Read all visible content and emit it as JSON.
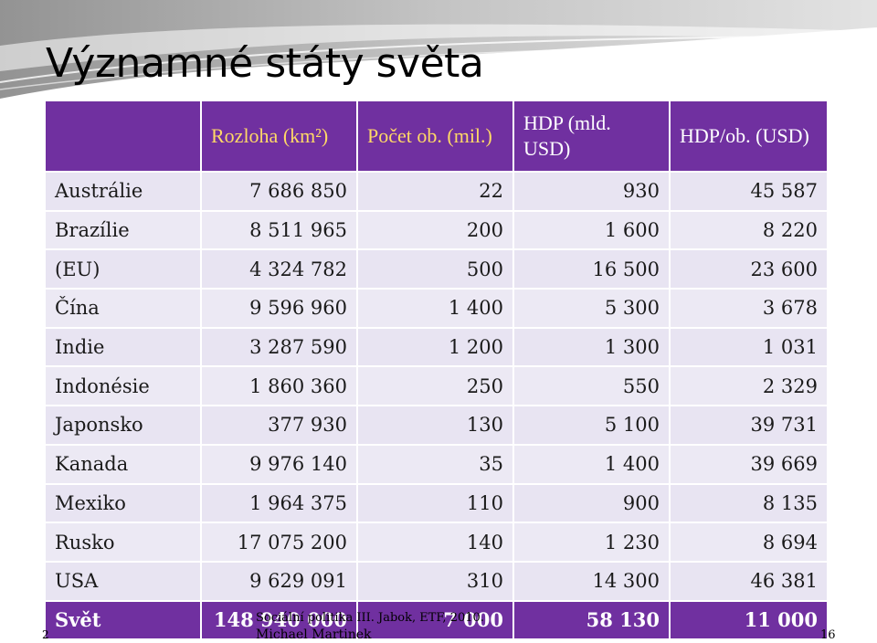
{
  "slide": {
    "title": "Významné státy světa"
  },
  "table": {
    "headers": [
      "",
      "Rozloha (km²)",
      "Počet ob. (mil.)",
      "HDP (mld. USD)",
      "HDP/ob. (USD)"
    ],
    "rows": [
      {
        "name": "Austrálie",
        "area": "7 686 850",
        "pop": "22",
        "gdp": "930",
        "gdp_pc": "45 587"
      },
      {
        "name": "Brazílie",
        "area": "8 511 965",
        "pop": "200",
        "gdp": "1 600",
        "gdp_pc": "8 220"
      },
      {
        "name": "(EU)",
        "area": "4 324 782",
        "pop": "500",
        "gdp": "16 500",
        "gdp_pc": "23 600"
      },
      {
        "name": "Čína",
        "area": "9 596 960",
        "pop": "1 400",
        "gdp": "5 300",
        "gdp_pc": "3 678"
      },
      {
        "name": "Indie",
        "area": "3 287 590",
        "pop": "1 200",
        "gdp": "1 300",
        "gdp_pc": "1 031"
      },
      {
        "name": "Indonésie",
        "area": "1 860 360",
        "pop": "250",
        "gdp": "550",
        "gdp_pc": "2 329"
      },
      {
        "name": "Japonsko",
        "area": "377 930",
        "pop": "130",
        "gdp": "5 100",
        "gdp_pc": "39 731"
      },
      {
        "name": "Kanada",
        "area": "9 976 140",
        "pop": "35",
        "gdp": "1 400",
        "gdp_pc": "39 669"
      },
      {
        "name": "Mexiko",
        "area": "1 964 375",
        "pop": "110",
        "gdp": "900",
        "gdp_pc": "8 135"
      },
      {
        "name": "Rusko",
        "area": "17 075 200",
        "pop": "140",
        "gdp": "1 230",
        "gdp_pc": "8 694"
      },
      {
        "name": "USA",
        "area": "9 629 091",
        "pop": "310",
        "gdp": "14 300",
        "gdp_pc": "46 381"
      },
      {
        "name": "Svět",
        "area": "148 940 000",
        "pop": "7 000",
        "gdp": "58 130",
        "gdp_pc": "11 000"
      }
    ]
  },
  "footer": {
    "source": "Sociální politika III. Jabok, ETF, 2010.",
    "author": "Michael Martinek",
    "page_left": "2",
    "page_right": "16"
  },
  "colors": {
    "header_bg": "#7030a0",
    "header_text": "#ffd966",
    "row_bg": "#e8e4f2"
  }
}
